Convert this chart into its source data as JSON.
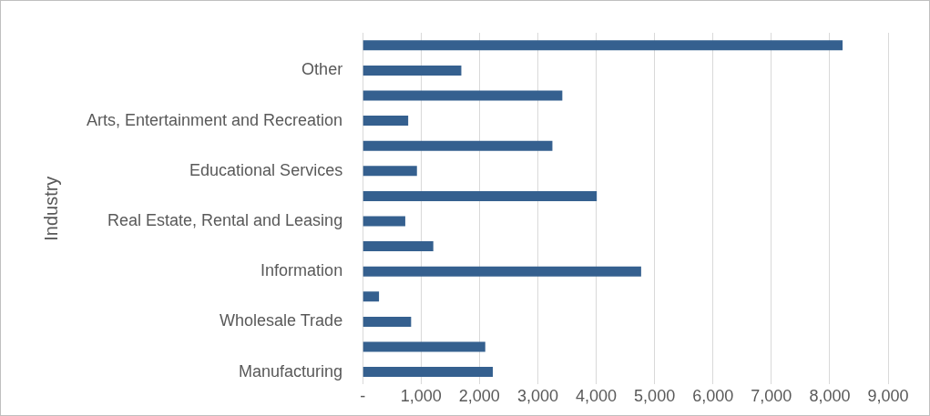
{
  "chart_data": {
    "type": "bar",
    "orientation": "horizontal",
    "ylabel": "Industry",
    "categories": [
      null,
      "Other",
      null,
      "Arts, Entertainment and Recreation",
      null,
      "Educational Services",
      null,
      "Real Estate, Rental and Leasing",
      null,
      "Information",
      null,
      "Wholesale Trade",
      null,
      "Manufacturing"
    ],
    "values": [
      8220,
      1690,
      3420,
      780,
      3250,
      930,
      4010,
      730,
      1210,
      4770,
      280,
      830,
      2100,
      2230
    ],
    "color": "#35608f",
    "xlim": [
      0,
      9000
    ],
    "xticks": [
      {
        "value": 0,
        "label": "-"
      },
      {
        "value": 1000,
        "label": "1,000"
      },
      {
        "value": 2000,
        "label": "2,000"
      },
      {
        "value": 3000,
        "label": "3,000"
      },
      {
        "value": 4000,
        "label": "4,000"
      },
      {
        "value": 5000,
        "label": "5,000"
      },
      {
        "value": 6000,
        "label": "6,000"
      },
      {
        "value": 7000,
        "label": "7,000"
      },
      {
        "value": 8000,
        "label": "8,000"
      },
      {
        "value": 9000,
        "label": "9,000"
      }
    ],
    "grid": "x"
  }
}
